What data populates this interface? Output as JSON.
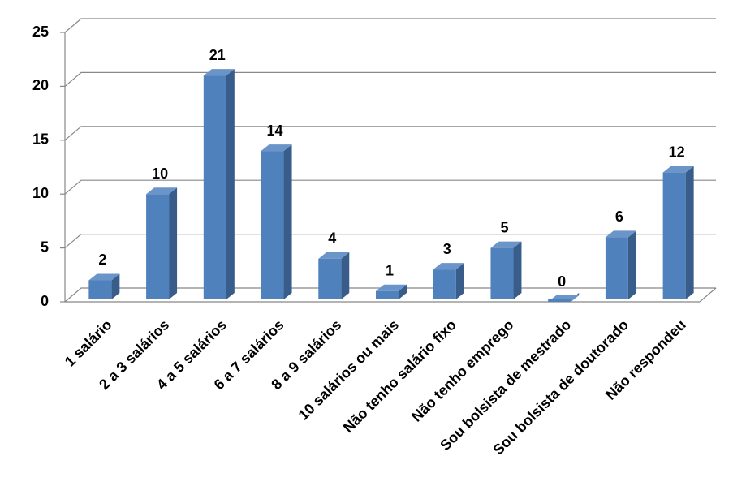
{
  "chart_data": {
    "type": "bar3d",
    "categories": [
      "1 salário",
      "2 a 3 salários",
      "4 a 5 salários",
      "6 a 7 salários",
      "8 a 9 salários",
      "10 salários ou mais",
      "Não tenho salário fixo",
      "Não tenho emprego",
      "Sou bolsista de mestrado",
      "Sou bolsista de doutorado",
      "Não respondeu"
    ],
    "values": [
      2,
      10,
      21,
      14,
      4,
      1,
      3,
      5,
      0,
      6,
      12
    ],
    "color": "#4f81bd",
    "ylim": [
      0,
      25
    ],
    "yticks": [
      0,
      5,
      10,
      15,
      20,
      25
    ],
    "grid": true
  }
}
